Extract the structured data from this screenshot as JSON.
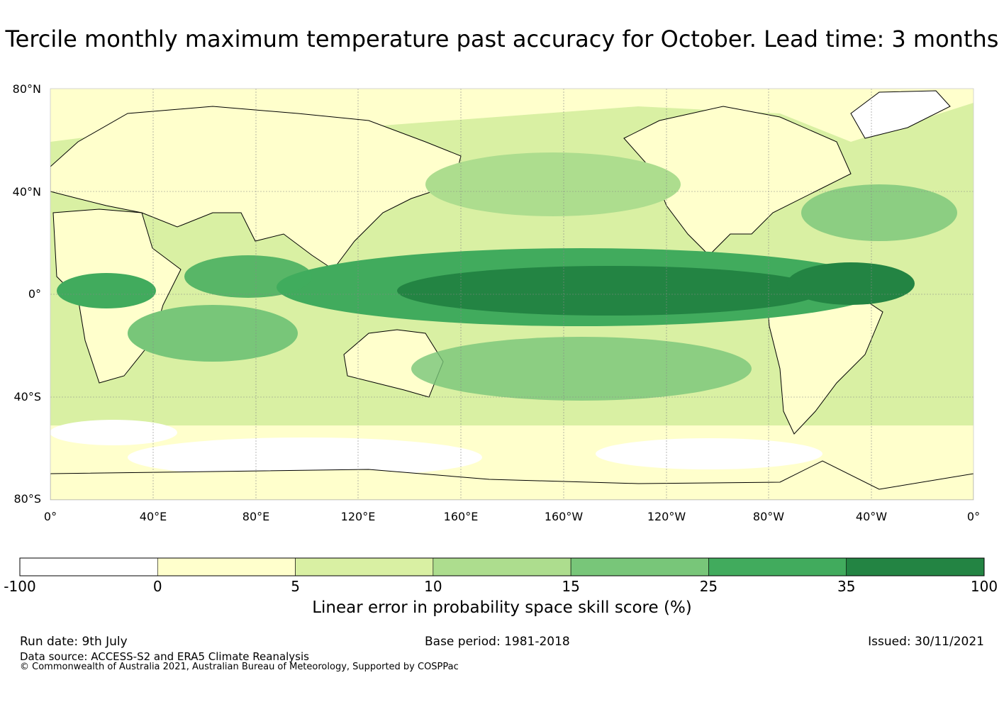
{
  "title": "Tercile monthly maximum temperature past accuracy for October. Lead time: 3 months",
  "map": {
    "lat_labels": [
      "80°N",
      "40°N",
      "0°",
      "40°S",
      "80°S"
    ],
    "lon_labels": [
      "0°",
      "40°E",
      "80°E",
      "120°E",
      "160°E",
      "160°W",
      "120°W",
      "80°W",
      "40°W",
      "0°"
    ]
  },
  "colorbar": {
    "ticks": [
      "-100",
      "0",
      "5",
      "10",
      "15",
      "25",
      "35",
      "100"
    ],
    "colors": [
      "#ffffff",
      "#ffffcc",
      "#d9f0a3",
      "#addd8e",
      "#78c679",
      "#41ab5d",
      "#238443"
    ],
    "label": "Linear error in probability space skill score (%)"
  },
  "footer": {
    "run_date": "Run date: 9th July",
    "base_period": "Base period: 1981-2018",
    "issued": "Issued: 30/11/2021",
    "data_source": "Data source: ACCESS-S2 and ERA5 Climate Reanalysis",
    "copyright": "© Commonwealth of Australia 2021, Australian Bureau of Meteorology, Supported by COSPPac"
  }
}
